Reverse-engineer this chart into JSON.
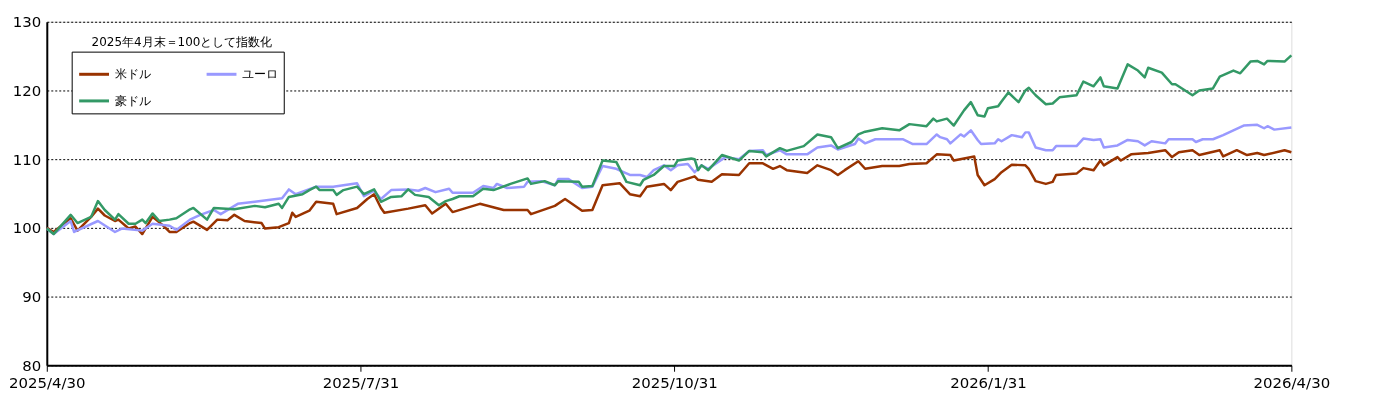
{
  "chart_data": {
    "type": "line",
    "annotations": [
      "2025年4月末＝100として指数化"
    ],
    "xlim": [
      "2025-04-30",
      "2026-04-30"
    ],
    "xticks": [
      {
        "value": "2025-04-30",
        "label": "2025/4/30"
      },
      {
        "value": "2025-07-31",
        "label": "2025/7/31"
      },
      {
        "value": "2025-10-31",
        "label": "2025/10/31"
      },
      {
        "value": "2026-01-31",
        "label": "2026/1/31"
      },
      {
        "value": "2026-04-30",
        "label": "2026/4/30"
      }
    ],
    "ylim": [
      80,
      130
    ],
    "yticks": [
      80,
      90,
      100,
      110,
      120,
      130
    ],
    "grid": "y",
    "legend": "top left",
    "marker": "none",
    "line_style": "solid",
    "series": [
      {
        "name": "米ドル",
        "color": "#993300",
        "x": [
          "2025-04-30",
          "2025-05-02",
          "2025-05-07",
          "2025-05-09",
          "2025-05-13",
          "2025-05-15",
          "2025-05-17",
          "2025-05-20",
          "2025-05-21",
          "2025-05-24",
          "2025-05-26",
          "2025-05-28",
          "2025-05-31",
          "2025-06-03",
          "2025-06-05",
          "2025-06-07",
          "2025-06-11",
          "2025-06-12",
          "2025-06-16",
          "2025-06-19",
          "2025-06-22",
          "2025-06-24",
          "2025-06-27",
          "2025-07-02",
          "2025-07-03",
          "2025-07-07",
          "2025-07-10",
          "2025-07-11",
          "2025-07-12",
          "2025-07-16",
          "2025-07-18",
          "2025-07-23",
          "2025-07-24",
          "2025-07-30",
          "2025-08-02",
          "2025-08-04",
          "2025-08-06",
          "2025-08-07",
          "2025-08-14",
          "2025-08-19",
          "2025-08-21",
          "2025-08-25",
          "2025-08-27",
          "2025-09-04",
          "2025-09-11",
          "2025-09-18",
          "2025-09-19",
          "2025-09-26",
          "2025-09-29",
          "2025-10-04",
          "2025-10-07",
          "2025-10-10",
          "2025-10-15",
          "2025-10-18",
          "2025-10-21",
          "2025-10-23",
          "2025-10-28",
          "2025-10-30",
          "2025-11-01",
          "2025-11-06",
          "2025-11-07",
          "2025-11-11",
          "2025-11-14",
          "2025-11-19",
          "2025-11-22",
          "2025-11-26",
          "2025-11-29",
          "2025-12-01",
          "2025-12-03",
          "2025-12-09",
          "2025-12-12",
          "2025-12-16",
          "2025-12-18",
          "2025-12-20",
          "2025-12-24",
          "2025-12-26",
          "2025-12-31",
          "2026-01-05",
          "2026-01-08",
          "2026-01-13",
          "2026-01-16",
          "2026-01-20",
          "2026-01-21",
          "2026-01-27",
          "2026-01-28",
          "2026-01-30",
          "2026-02-02",
          "2026-02-04",
          "2026-02-07",
          "2026-02-11",
          "2026-02-12",
          "2026-02-14",
          "2026-02-17",
          "2026-02-19",
          "2026-02-20",
          "2026-02-26",
          "2026-02-28",
          "2026-03-03",
          "2026-03-05",
          "2026-03-06",
          "2026-03-10",
          "2026-03-11",
          "2026-03-14",
          "2026-03-19",
          "2026-03-24",
          "2026-03-26",
          "2026-03-28",
          "2026-04-01",
          "2026-04-03",
          "2026-04-09",
          "2026-04-10",
          "2026-04-14",
          "2026-04-17",
          "2026-04-20",
          "2026-04-22",
          "2026-04-28",
          "2026-04-30"
        ],
        "values": [
          100,
          99.4,
          101.4,
          99.6,
          101.6,
          102.8,
          101.8,
          101.0,
          101.2,
          99.9,
          100.2,
          99.1,
          101.6,
          100.4,
          99.4,
          99.4,
          100.7,
          100.9,
          99.7,
          101.2,
          101.1,
          101.9,
          101.0,
          100.7,
          99.9,
          100.1,
          100.7,
          102.2,
          101.6,
          102.5,
          103.8,
          103.5,
          102.0,
          102.9,
          104.2,
          104.9,
          102.9,
          102.2,
          102.8,
          103.3,
          102.1,
          103.5,
          102.3,
          103.5,
          102.6,
          102.6,
          102.0,
          103.2,
          104.2,
          102.5,
          102.6,
          106.2,
          106.5,
          104.9,
          104.6,
          106.0,
          106.4,
          105.5,
          106.7,
          107.5,
          107.0,
          106.7,
          107.8,
          107.7,
          109.4,
          109.4,
          108.6,
          109.0,
          108.4,
          108.0,
          109.1,
          108.4,
          107.7,
          108.4,
          109.7,
          108.6,
          109.0,
          109.0,
          109.3,
          109.4,
          110.7,
          110.6,
          109.8,
          110.4,
          107.7,
          106.2,
          107.1,
          108.1,
          109.2,
          109.1,
          108.6,
          106.8,
          106.4,
          106.7,
          107.7,
          107.9,
          108.7,
          108.4,
          109.8,
          109.1,
          110.3,
          109.8,
          110.7,
          110.9,
          111.3,
          110.3,
          111.0,
          111.3,
          110.6,
          111.3,
          110.4,
          111.3,
          110.6,
          110.9,
          110.6,
          111.3,
          111.0
        ]
      },
      {
        "name": "ユーロ",
        "color": "#9999ff",
        "x": [
          "2025-04-30",
          "2025-05-02",
          "2025-05-07",
          "2025-05-08",
          "2025-05-15",
          "2025-05-20",
          "2025-05-22",
          "2025-05-28",
          "2025-05-31",
          "2025-06-05",
          "2025-06-07",
          "2025-06-11",
          "2025-06-14",
          "2025-06-18",
          "2025-06-20",
          "2025-06-25",
          "2025-06-30",
          "2025-07-08",
          "2025-07-10",
          "2025-07-12",
          "2025-07-18",
          "2025-07-23",
          "2025-07-30",
          "2025-08-01",
          "2025-08-04",
          "2025-08-06",
          "2025-08-09",
          "2025-08-14",
          "2025-08-17",
          "2025-08-19",
          "2025-08-22",
          "2025-08-26",
          "2025-08-27",
          "2025-09-02",
          "2025-09-05",
          "2025-09-08",
          "2025-09-09",
          "2025-09-12",
          "2025-09-17",
          "2025-09-18",
          "2025-09-22",
          "2025-09-26",
          "2025-09-27",
          "2025-09-30",
          "2025-10-04",
          "2025-10-07",
          "2025-10-10",
          "2025-10-14",
          "2025-10-18",
          "2025-10-21",
          "2025-10-23",
          "2025-10-25",
          "2025-10-28",
          "2025-10-30",
          "2025-11-01",
          "2025-11-04",
          "2025-11-06",
          "2025-11-08",
          "2025-11-10",
          "2025-11-15",
          "2025-11-19",
          "2025-11-22",
          "2025-11-26",
          "2025-11-27",
          "2025-12-01",
          "2025-12-03",
          "2025-12-09",
          "2025-12-12",
          "2025-12-16",
          "2025-12-18",
          "2025-12-23",
          "2025-12-24",
          "2025-12-26",
          "2025-12-29",
          "2025-12-31",
          "2026-01-06",
          "2026-01-09",
          "2026-01-13",
          "2026-01-16",
          "2026-01-17",
          "2026-01-19",
          "2026-01-20",
          "2026-01-23",
          "2026-01-24",
          "2026-01-26",
          "2026-01-28",
          "2026-01-29",
          "2026-02-02",
          "2026-02-03",
          "2026-02-04",
          "2026-02-07",
          "2026-02-10",
          "2026-02-11",
          "2026-02-12",
          "2026-02-14",
          "2026-02-17",
          "2026-02-19",
          "2026-02-20",
          "2026-02-26",
          "2026-02-28",
          "2026-03-03",
          "2026-03-05",
          "2026-03-06",
          "2026-03-10",
          "2026-03-13",
          "2026-03-16",
          "2026-03-18",
          "2026-03-20",
          "2026-03-24",
          "2026-03-25",
          "2026-03-27",
          "2026-04-01",
          "2026-04-02",
          "2026-04-04",
          "2026-04-07",
          "2026-04-10",
          "2026-04-13",
          "2026-04-16",
          "2026-04-20",
          "2026-04-22",
          "2026-04-23",
          "2026-04-25",
          "2026-04-30"
        ],
        "values": [
          99.9,
          99.1,
          101.0,
          99.4,
          101.0,
          99.4,
          99.9,
          99.6,
          100.6,
          100.3,
          99.7,
          101.2,
          101.9,
          102.6,
          102.0,
          103.5,
          103.8,
          104.3,
          105.6,
          104.9,
          106.0,
          106.0,
          106.5,
          104.6,
          105.4,
          104.2,
          105.5,
          105.6,
          105.4,
          105.8,
          105.2,
          105.7,
          105.1,
          105.1,
          106.1,
          105.8,
          106.4,
          105.8,
          106.0,
          106.7,
          106.8,
          106.2,
          107.1,
          107.1,
          105.8,
          106.0,
          109.0,
          108.6,
          107.7,
          107.7,
          107.4,
          108.4,
          109.1,
          108.4,
          109.1,
          109.3,
          108.1,
          109.1,
          108.6,
          110.3,
          110.0,
          111.2,
          111.3,
          110.6,
          111.3,
          110.7,
          110.7,
          111.7,
          112.0,
          111.4,
          112.2,
          113.0,
          112.3,
          112.9,
          112.9,
          112.9,
          112.2,
          112.2,
          113.6,
          113.2,
          112.9,
          112.3,
          113.6,
          113.3,
          114.2,
          112.8,
          112.2,
          112.3,
          112.9,
          112.6,
          113.5,
          113.2,
          113.9,
          113.9,
          111.7,
          111.3,
          111.3,
          111.9,
          111.9,
          113.0,
          112.8,
          112.9,
          111.7,
          112.0,
          112.8,
          112.6,
          112.0,
          112.6,
          112.3,
          112.9,
          112.9,
          112.9,
          112.5,
          112.9,
          112.9,
          113.5,
          114.2,
          114.9,
          115.0,
          114.5,
          114.8,
          114.3,
          114.6
        ]
      },
      {
        "name": "豪ドル",
        "color": "#339966",
        "x": [
          "2025-04-30",
          "2025-05-02",
          "2025-05-07",
          "2025-05-09",
          "2025-05-13",
          "2025-05-15",
          "2025-05-17",
          "2025-05-20",
          "2025-05-21",
          "2025-05-24",
          "2025-05-26",
          "2025-05-28",
          "2025-05-29",
          "2025-05-31",
          "2025-06-02",
          "2025-06-05",
          "2025-06-07",
          "2025-06-11",
          "2025-06-12",
          "2025-06-16",
          "2025-06-18",
          "2025-06-24",
          "2025-06-30",
          "2025-07-03",
          "2025-07-07",
          "2025-07-08",
          "2025-07-10",
          "2025-07-14",
          "2025-07-16",
          "2025-07-18",
          "2025-07-19",
          "2025-07-23",
          "2025-07-24",
          "2025-07-26",
          "2025-07-30",
          "2025-08-01",
          "2025-08-04",
          "2025-08-06",
          "2025-08-09",
          "2025-08-12",
          "2025-08-14",
          "2025-08-16",
          "2025-08-20",
          "2025-08-23",
          "2025-08-25",
          "2025-08-27",
          "2025-08-29",
          "2025-09-02",
          "2025-09-05",
          "2025-09-08",
          "2025-09-13",
          "2025-09-18",
          "2025-09-19",
          "2025-09-23",
          "2025-09-26",
          "2025-09-27",
          "2025-10-03",
          "2025-10-04",
          "2025-10-07",
          "2025-10-10",
          "2025-10-14",
          "2025-10-17",
          "2025-10-21",
          "2025-10-22",
          "2025-10-25",
          "2025-10-28",
          "2025-10-31",
          "2025-11-01",
          "2025-11-05",
          "2025-11-06",
          "2025-11-07",
          "2025-11-08",
          "2025-11-10",
          "2025-11-14",
          "2025-11-19",
          "2025-11-22",
          "2025-11-26",
          "2025-11-27",
          "2025-12-01",
          "2025-12-03",
          "2025-12-08",
          "2025-12-12",
          "2025-12-16",
          "2025-12-18",
          "2025-12-22",
          "2025-12-24",
          "2025-12-26",
          "2025-12-31",
          "2026-01-05",
          "2026-01-08",
          "2026-01-13",
          "2026-01-15",
          "2026-01-16",
          "2026-01-19",
          "2026-01-21",
          "2026-01-24",
          "2026-01-26",
          "2026-01-28",
          "2026-01-30",
          "2026-01-31",
          "2026-02-03",
          "2026-02-04",
          "2026-02-06",
          "2026-02-09",
          "2026-02-11",
          "2026-02-12",
          "2026-02-14",
          "2026-02-17",
          "2026-02-19",
          "2026-02-21",
          "2026-02-26",
          "2026-02-28",
          "2026-03-03",
          "2026-03-05",
          "2026-03-06",
          "2026-03-10",
          "2026-03-13",
          "2026-03-16",
          "2026-03-18",
          "2026-03-19",
          "2026-03-23",
          "2026-03-26",
          "2026-03-27",
          "2026-04-01",
          "2026-04-03",
          "2026-04-07",
          "2026-04-09",
          "2026-04-13",
          "2026-04-15",
          "2026-04-18",
          "2026-04-20",
          "2026-04-22",
          "2026-04-23",
          "2026-04-28",
          "2026-04-30"
        ],
        "values": [
          99.9,
          99.1,
          101.9,
          100.7,
          101.6,
          103.9,
          102.6,
          101.2,
          102.0,
          100.6,
          100.6,
          101.2,
          100.7,
          102.1,
          101.0,
          101.2,
          101.4,
          102.7,
          102.9,
          101.2,
          102.9,
          102.7,
          103.2,
          103.0,
          103.5,
          102.9,
          104.5,
          104.9,
          105.5,
          106.0,
          105.5,
          105.5,
          104.8,
          105.5,
          106.0,
          104.9,
          105.6,
          103.8,
          104.5,
          104.6,
          105.6,
          104.8,
          104.5,
          103.3,
          103.9,
          104.2,
          104.6,
          104.6,
          105.7,
          105.5,
          106.4,
          107.2,
          106.4,
          106.8,
          106.2,
          106.8,
          106.7,
          106.0,
          106.1,
          109.8,
          109.6,
          106.7,
          106.2,
          107.0,
          107.7,
          109.0,
          109.0,
          109.8,
          110.1,
          110.0,
          108.4,
          109.1,
          108.4,
          110.6,
          109.8,
          111.2,
          111.0,
          110.4,
          111.6,
          111.2,
          111.9,
          113.6,
          113.2,
          111.6,
          112.5,
          113.6,
          114.0,
          114.5,
          114.2,
          115.1,
          114.8,
          115.9,
          115.5,
          115.9,
          114.9,
          117.1,
          118.3,
          116.4,
          116.2,
          117.4,
          117.7,
          118.4,
          119.7,
          118.3,
          120.0,
          120.4,
          119.3,
          118.0,
          118.1,
          119.0,
          119.3,
          121.3,
          120.6,
          121.9,
          120.6,
          120.3,
          123.8,
          122.9,
          121.9,
          123.3,
          122.6,
          120.9,
          120.9,
          119.3,
          120.0,
          120.3,
          122.0,
          122.9,
          122.5,
          124.2,
          124.3,
          123.8,
          124.3,
          124.2,
          125.1
        ]
      }
    ]
  }
}
